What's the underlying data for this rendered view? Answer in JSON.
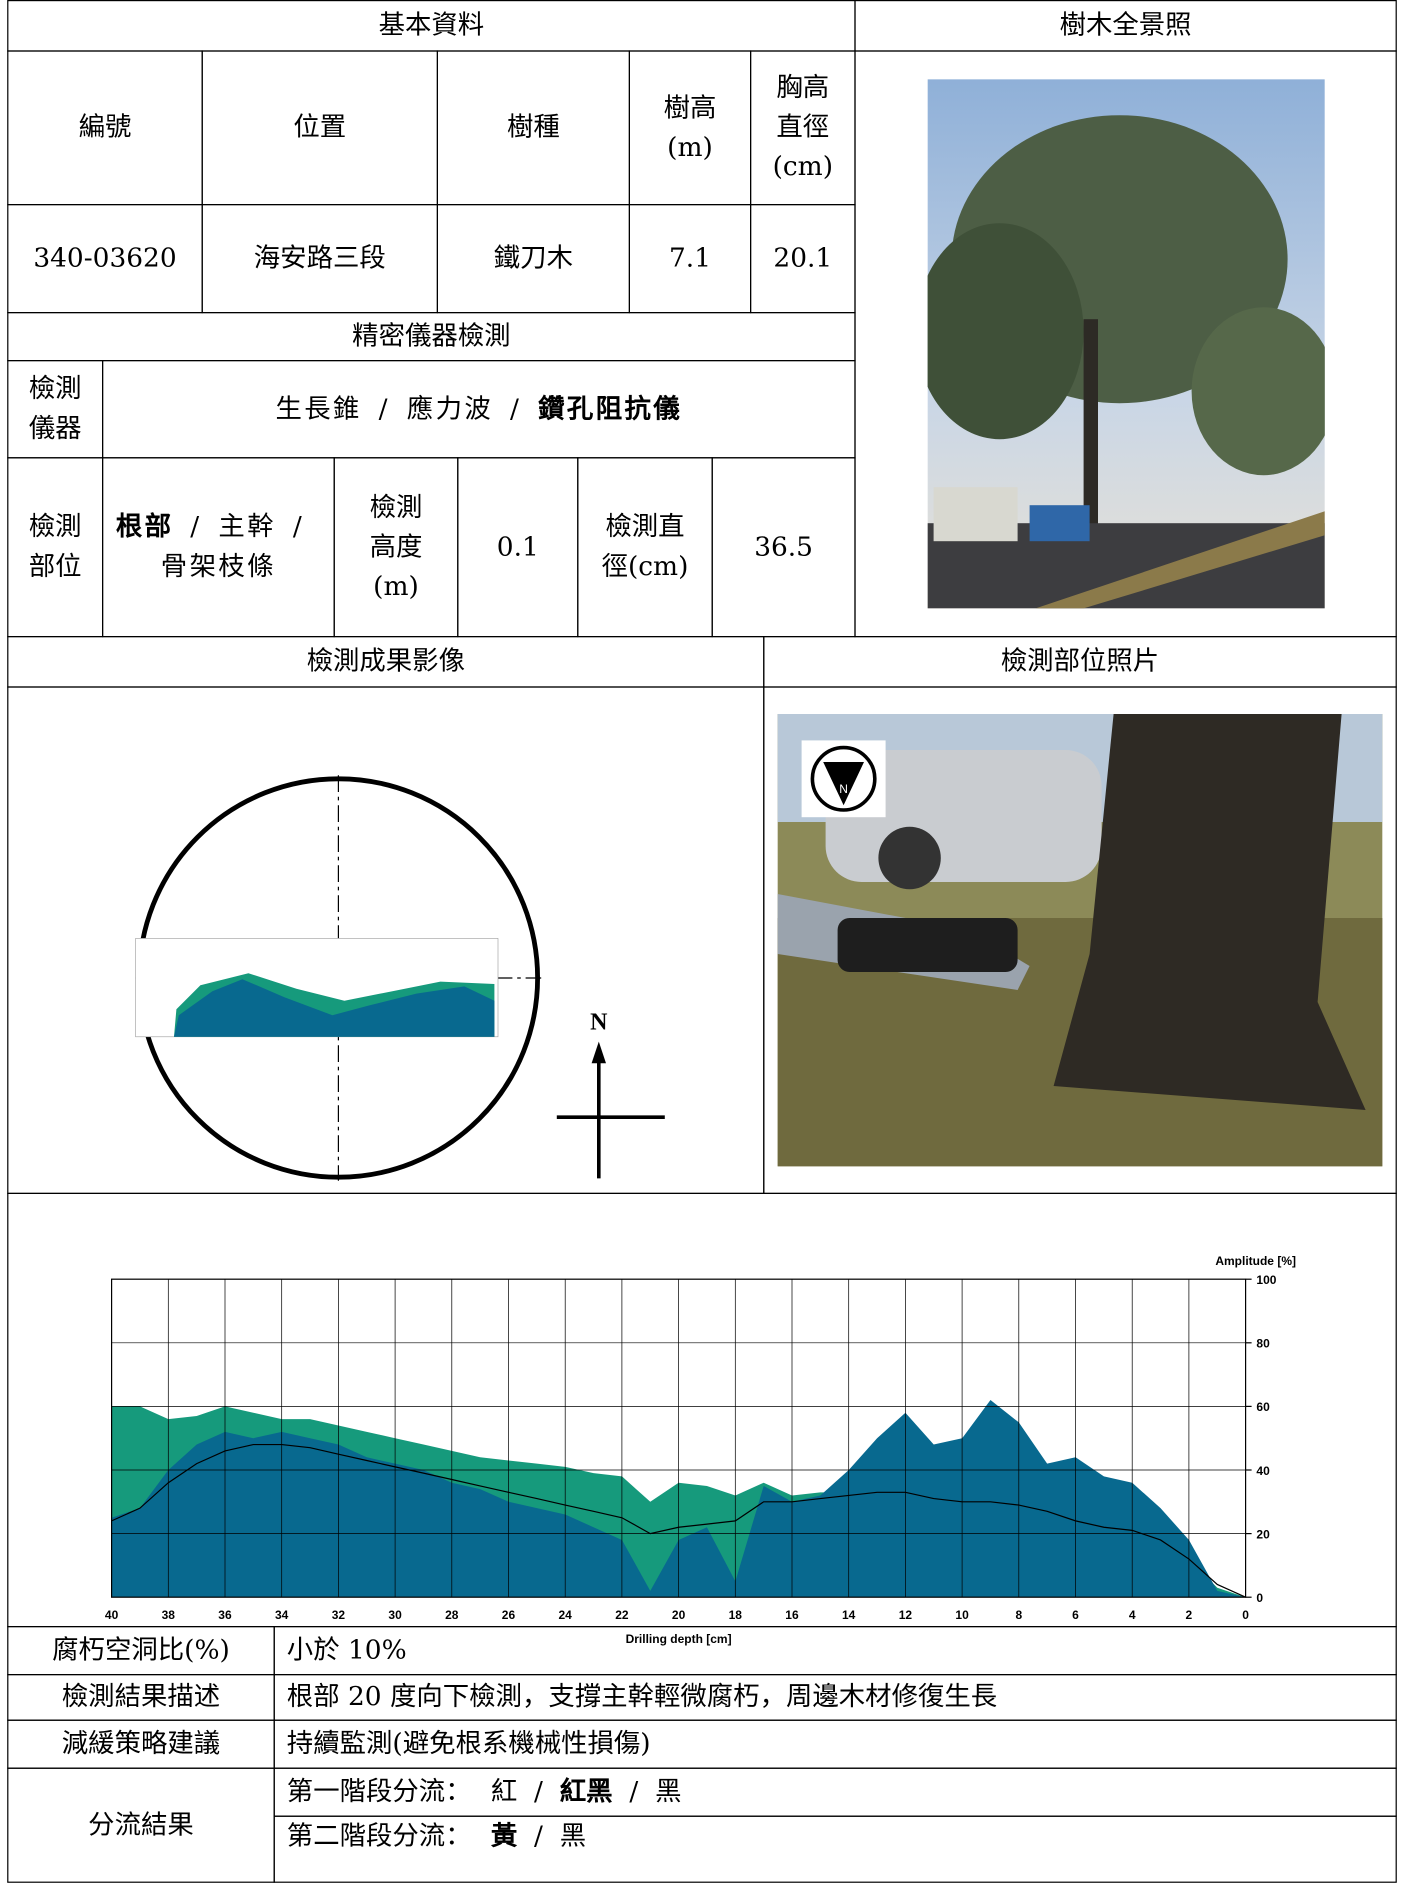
{
  "basic": {
    "title": "基本資料",
    "headers": [
      "編號",
      "位置",
      "樹種",
      "樹高\n(m)",
      "胸高\n直徑\n(cm)"
    ],
    "values": [
      "340-03620",
      "海安路三段",
      "鐵刀木",
      7.1,
      20.1
    ]
  },
  "photo_title": "樹木全景照",
  "separator": "/",
  "instrument": {
    "title": "精密儀器檢測",
    "label": "檢測\n儀器",
    "options": [
      "生長錐",
      "應力波",
      "鑽孔阻抗儀"
    ],
    "selected": 2
  },
  "part": {
    "label": "檢測\n部位",
    "options": [
      "根部",
      "主幹",
      "骨架枝條"
    ],
    "selected": 0,
    "height_label": "檢測\n高度\n(m)",
    "height": 0.1,
    "diameter_label": "檢測直\n徑(cm)",
    "diameter": 36.5
  },
  "result_image_title": "檢測成果影像",
  "part_photo_title": "檢測部位照片",
  "compass_label": "N",
  "rows": [
    [
      "腐朽空洞比(%)",
      "小於 10%"
    ],
    [
      "檢測結果描述",
      "根部 20 度向下檢測，支撐主幹輕微腐朽，周邊木材修復生長"
    ],
    [
      "減緩策略建議",
      "持續監測(避免根系機械性損傷)"
    ]
  ],
  "classification": {
    "label": "分流結果",
    "stages": [
      {
        "label": "第一階段分流：",
        "options": [
          "紅",
          "紅黑",
          "黑"
        ],
        "selected": 1
      },
      {
        "label": "第二階段分流：",
        "options": [
          "黃",
          "黑"
        ],
        "selected": 0
      }
    ]
  },
  "chart_data": {
    "type": "area",
    "xlabel": "Drilling depth [cm]",
    "ylabel": "Amplitude [%]",
    "x": [
      40,
      39,
      38,
      37,
      36,
      35,
      34,
      33,
      32,
      31,
      30,
      29,
      28,
      27,
      26,
      25,
      24,
      23,
      22,
      21,
      20,
      19,
      18,
      17,
      16,
      15,
      14,
      13,
      12,
      11,
      10,
      9,
      8,
      7,
      6,
      5,
      4,
      3,
      2,
      1,
      0
    ],
    "series": [
      {
        "type": "area",
        "color": "#169a7c",
        "values": [
          60,
          60,
          56,
          57,
          60,
          58,
          56,
          56,
          54,
          52,
          50,
          48,
          46,
          44,
          43,
          42,
          41,
          39,
          38,
          30,
          36,
          35,
          32,
          36,
          32,
          33,
          33,
          34,
          33,
          31,
          30,
          30,
          29,
          27,
          24,
          22,
          22,
          18,
          12,
          3,
          0
        ]
      },
      {
        "type": "area",
        "color": "#08698f",
        "values": [
          25,
          28,
          40,
          48,
          52,
          50,
          52,
          50,
          48,
          44,
          42,
          40,
          36,
          34,
          30,
          28,
          26,
          22,
          18,
          2,
          18,
          22,
          5,
          35,
          30,
          32,
          40,
          50,
          58,
          48,
          50,
          62,
          55,
          42,
          44,
          38,
          36,
          28,
          18,
          2,
          0
        ]
      },
      {
        "type": "line",
        "color": "#000000",
        "values": [
          24,
          28,
          36,
          42,
          46,
          48,
          48,
          47,
          45,
          43,
          41,
          39,
          37,
          35,
          33,
          31,
          29,
          27,
          25,
          20,
          22,
          23,
          24,
          30,
          30,
          31,
          32,
          33,
          33,
          31,
          30,
          30,
          29,
          27,
          24,
          22,
          21,
          18,
          12,
          4,
          0
        ]
      }
    ],
    "xlim": [
      40,
      0
    ],
    "ylim": [
      0,
      100
    ],
    "xticks": [
      40,
      38,
      36,
      34,
      32,
      30,
      28,
      26,
      24,
      22,
      20,
      18,
      16,
      14,
      12,
      10,
      8,
      6,
      4,
      2,
      0
    ],
    "yticks": [
      0,
      20,
      40,
      60,
      80,
      100
    ],
    "grid": true
  }
}
